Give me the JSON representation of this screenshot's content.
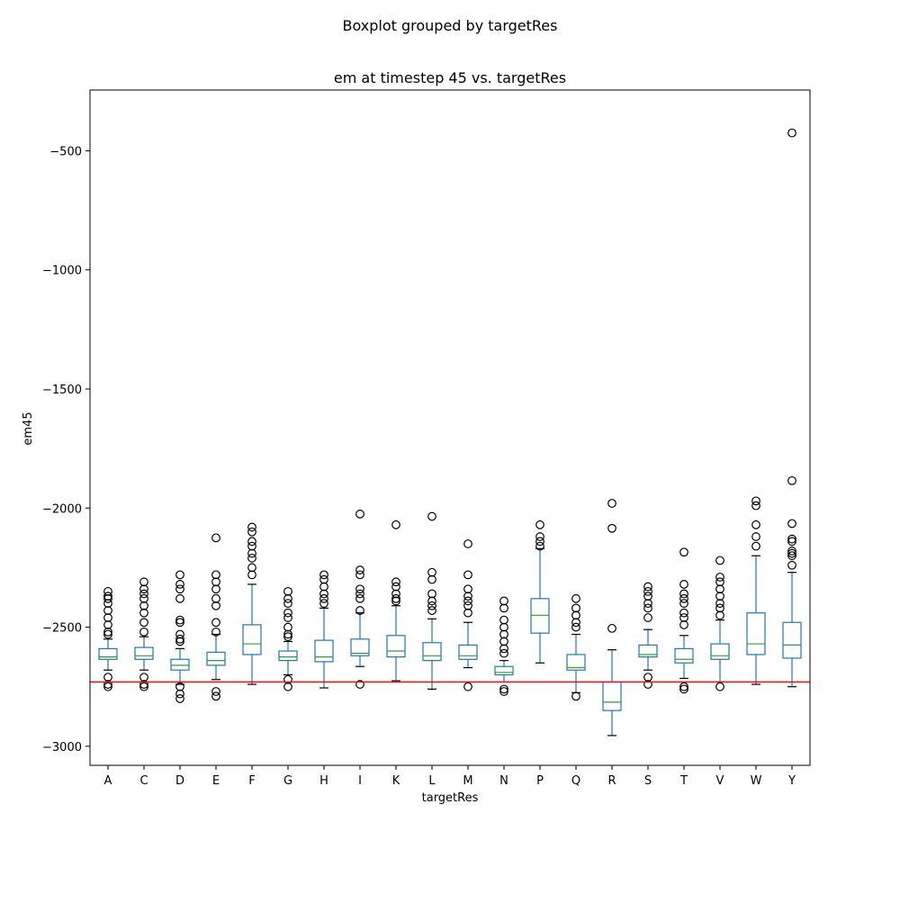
{
  "suptitle": "Boxplot grouped by targetRes",
  "chart_data": {
    "type": "box",
    "title": "em at timestep 45 vs. targetRes",
    "xlabel": "targetRes",
    "ylabel": "em45",
    "ylim": [
      -3080,
      -245
    ],
    "yticks": [
      -500,
      -1000,
      -1500,
      -2000,
      -2500,
      -3000
    ],
    "ytick_labels": [
      "−500",
      "−1000",
      "−1500",
      "−2000",
      "−2500",
      "−3000"
    ],
    "reference_line": {
      "y": -2730,
      "color": "#e31a1c"
    },
    "colors": {
      "box": "#1f77b4",
      "median": "#2ca02c",
      "whisker_cap": "#000000",
      "flier": "#000000"
    },
    "categories": [
      "A",
      "C",
      "D",
      "E",
      "F",
      "G",
      "H",
      "I",
      "K",
      "L",
      "M",
      "N",
      "P",
      "Q",
      "R",
      "S",
      "T",
      "V",
      "W",
      "Y"
    ],
    "boxes": [
      {
        "q1": -2635,
        "median": -2625,
        "q3": -2590,
        "whislo": -2680,
        "whishi": -2550,
        "fliers": [
          -2350,
          -2370,
          -2380,
          -2400,
          -2430,
          -2460,
          -2490,
          -2520,
          -2530,
          -2710,
          -2740,
          -2750
        ]
      },
      {
        "q1": -2635,
        "median": -2620,
        "q3": -2585,
        "whislo": -2680,
        "whishi": -2540,
        "fliers": [
          -2310,
          -2340,
          -2360,
          -2380,
          -2410,
          -2440,
          -2480,
          -2520,
          -2710,
          -2740,
          -2750
        ]
      },
      {
        "q1": -2680,
        "median": -2660,
        "q3": -2635,
        "whislo": -2740,
        "whishi": -2590,
        "fliers": [
          -2280,
          -2320,
          -2340,
          -2380,
          -2470,
          -2480,
          -2530,
          -2550,
          -2560,
          -2750,
          -2780,
          -2800
        ]
      },
      {
        "q1": -2660,
        "median": -2640,
        "q3": -2605,
        "whislo": -2720,
        "whishi": -2530,
        "fliers": [
          -2125,
          -2280,
          -2310,
          -2340,
          -2380,
          -2410,
          -2480,
          -2520,
          -2770,
          -2790
        ]
      },
      {
        "q1": -2615,
        "median": -2570,
        "q3": -2490,
        "whislo": -2740,
        "whishi": -2320,
        "fliers": [
          -2080,
          -2100,
          -2140,
          -2160,
          -2190,
          -2210,
          -2250,
          -2280
        ]
      },
      {
        "q1": -2640,
        "median": -2625,
        "q3": -2600,
        "whislo": -2700,
        "whishi": -2560,
        "fliers": [
          -2350,
          -2380,
          -2400,
          -2440,
          -2460,
          -2500,
          -2530,
          -2540,
          -2720,
          -2750
        ]
      },
      {
        "q1": -2645,
        "median": -2625,
        "q3": -2555,
        "whislo": -2755,
        "whishi": -2420,
        "fliers": [
          -2280,
          -2300,
          -2330,
          -2360,
          -2380,
          -2400
        ]
      },
      {
        "q1": -2620,
        "median": -2610,
        "q3": -2550,
        "whislo": -2665,
        "whishi": -2440,
        "fliers": [
          -2025,
          -2260,
          -2280,
          -2340,
          -2360,
          -2380,
          -2430,
          -2740
        ]
      },
      {
        "q1": -2625,
        "median": -2600,
        "q3": -2535,
        "whislo": -2725,
        "whishi": -2410,
        "fliers": [
          -2070,
          -2310,
          -2330,
          -2360,
          -2380,
          -2390
        ]
      },
      {
        "q1": -2640,
        "median": -2620,
        "q3": -2565,
        "whislo": -2760,
        "whishi": -2465,
        "fliers": [
          -2035,
          -2270,
          -2300,
          -2360,
          -2390,
          -2410,
          -2430
        ]
      },
      {
        "q1": -2635,
        "median": -2620,
        "q3": -2575,
        "whislo": -2670,
        "whishi": -2480,
        "fliers": [
          -2150,
          -2280,
          -2340,
          -2370,
          -2390,
          -2410,
          -2440,
          -2750
        ]
      },
      {
        "q1": -2700,
        "median": -2690,
        "q3": -2665,
        "whislo": -2730,
        "whishi": -2640,
        "fliers": [
          -2390,
          -2420,
          -2470,
          -2500,
          -2530,
          -2560,
          -2590,
          -2610,
          -2760,
          -2770
        ]
      },
      {
        "q1": -2525,
        "median": -2450,
        "q3": -2380,
        "whislo": -2650,
        "whishi": -2170,
        "fliers": [
          -2070,
          -2120,
          -2140,
          -2160
        ]
      },
      {
        "q1": -2680,
        "median": -2670,
        "q3": -2615,
        "whislo": -2775,
        "whishi": -2530,
        "fliers": [
          -2380,
          -2420,
          -2450,
          -2480,
          -2500,
          -2790
        ]
      },
      {
        "q1": -2850,
        "median": -2815,
        "q3": -2730,
        "whislo": -2955,
        "whishi": -2595,
        "fliers": [
          -1980,
          -2085,
          -2505
        ]
      },
      {
        "q1": -2625,
        "median": -2615,
        "q3": -2575,
        "whislo": -2680,
        "whishi": -2510,
        "fliers": [
          -2330,
          -2350,
          -2370,
          -2400,
          -2420,
          -2460,
          -2710,
          -2740
        ]
      },
      {
        "q1": -2650,
        "median": -2635,
        "q3": -2590,
        "whislo": -2715,
        "whishi": -2535,
        "fliers": [
          -2185,
          -2320,
          -2360,
          -2380,
          -2400,
          -2440,
          -2460,
          -2490,
          -2750,
          -2760
        ]
      },
      {
        "q1": -2635,
        "median": -2620,
        "q3": -2570,
        "whislo": -2730,
        "whishi": -2470,
        "fliers": [
          -2220,
          -2290,
          -2310,
          -2340,
          -2370,
          -2400,
          -2420,
          -2450,
          -2750
        ]
      },
      {
        "q1": -2615,
        "median": -2570,
        "q3": -2440,
        "whislo": -2740,
        "whishi": -2200,
        "fliers": [
          -1970,
          -1990,
          -2070,
          -2120,
          -2160
        ]
      },
      {
        "q1": -2630,
        "median": -2575,
        "q3": -2480,
        "whislo": -2750,
        "whishi": -2270,
        "fliers": [
          -425,
          -1885,
          -2065,
          -2130,
          -2140,
          -2180,
          -2190,
          -2200,
          -2240
        ]
      }
    ]
  }
}
